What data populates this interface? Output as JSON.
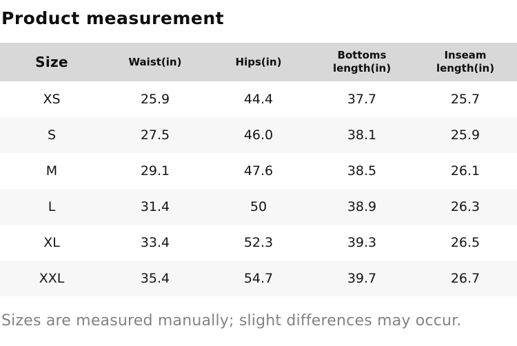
{
  "page": {
    "title": "Product measurement",
    "footer": "Sizes are measured manually; slight differences may occur."
  },
  "table": {
    "headers": [
      "Size",
      "Waist(in)",
      "Hips(in)",
      "Bottoms length(in)",
      "Inseam length(in)"
    ],
    "rows": [
      [
        "XS",
        "25.9",
        "44.4",
        "37.7",
        "25.7"
      ],
      [
        "S",
        "27.5",
        "46.0",
        "38.1",
        "25.9"
      ],
      [
        "M",
        "29.1",
        "47.6",
        "38.5",
        "26.1"
      ],
      [
        "L",
        "31.4",
        "50",
        "38.9",
        "26.3"
      ],
      [
        "XL",
        "33.4",
        "52.3",
        "39.3",
        "26.5"
      ],
      [
        "XXL",
        "35.4",
        "54.7",
        "39.7",
        "26.7"
      ]
    ]
  },
  "colors": {
    "header_bg": "#d8d8d8",
    "row_alt_bg": "#f7f7f7",
    "text": "#111111",
    "muted_text": "#828282"
  }
}
